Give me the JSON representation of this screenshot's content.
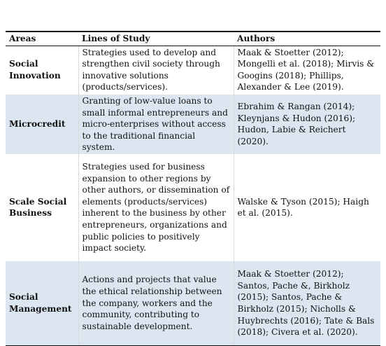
{
  "table": {
    "headers": [
      "Areas",
      "Lines of Study",
      "Authors"
    ],
    "rows": [
      {
        "area": "Social Innovation",
        "lines": "Strategies used to develop and strengthen civil society through innovative solutions (products/services).",
        "authors": "Maak & Stoetter (2012); Mongelli et al. (2018); Mirvis & Googins (2018); Phillips, Alexander & Lee (2019)."
      },
      {
        "area": "Microcredit",
        "lines": "Granting of low-value loans to small informal entrepreneurs and micro-enterprises without access to the traditional financial system.",
        "authors": "Ebrahim & Rangan (2014); Kleynjans & Hudon (2016); Hudon, Labie & Reichert (2020)."
      },
      {
        "area": "Scale Social Business",
        "lines": "Strategies used for business expansion to other regions by other authors, or dissemination of elements (products/services) inherent to the business by other entrepreneurs, organizations and public policies to positively impact society.",
        "authors": "Walske & Tyson (2015); Haigh et al. (2015)."
      },
      {
        "area": "Social Management",
        "lines": "Actions and projects that value the ethical relationship between the company, workers and the community, contributing to sustainable development.",
        "authors": "Maak & Stoetter (2012); Santos, Pache &, Birkholz (2015); Santos, Pache & Birkholz (2015); Nicholls & Huybrechts (2016); Tate & Bals (2018); Civera et al. (2020)."
      }
    ]
  }
}
